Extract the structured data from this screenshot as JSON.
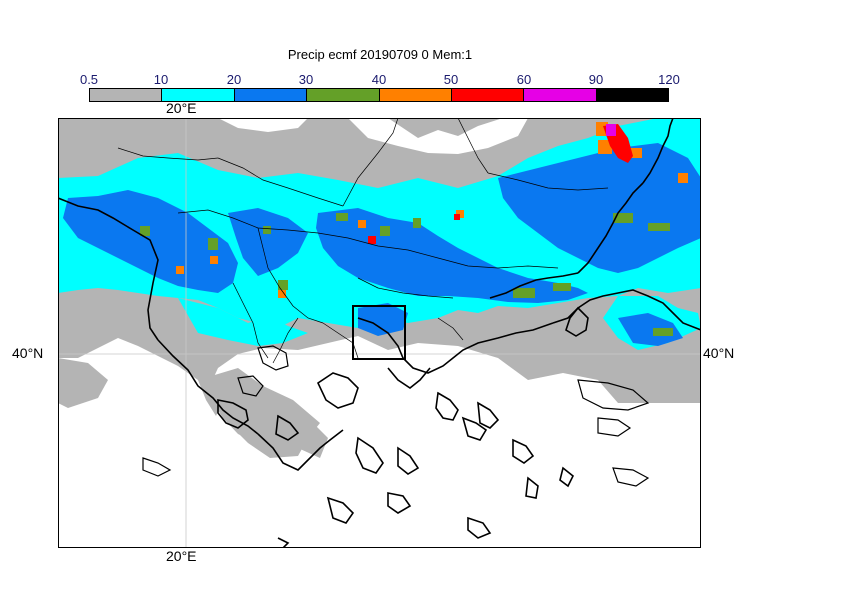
{
  "title": "Precip ecmf 20190709 0 Mem:1",
  "legend": {
    "ticks": [
      "0.5",
      "10",
      "20",
      "30",
      "40",
      "50",
      "60",
      "90",
      "120"
    ],
    "colors": [
      "#b4b4b4",
      "#00ffff",
      "#0a78f0",
      "#64a028",
      "#ff8000",
      "#ff0000",
      "#e600e6",
      "#000000"
    ]
  },
  "map": {
    "lon_label_top": "20°E",
    "lon_label_bottom": "20°E",
    "lat_label_left": "40°N",
    "lat_label_right": "40°N"
  }
}
